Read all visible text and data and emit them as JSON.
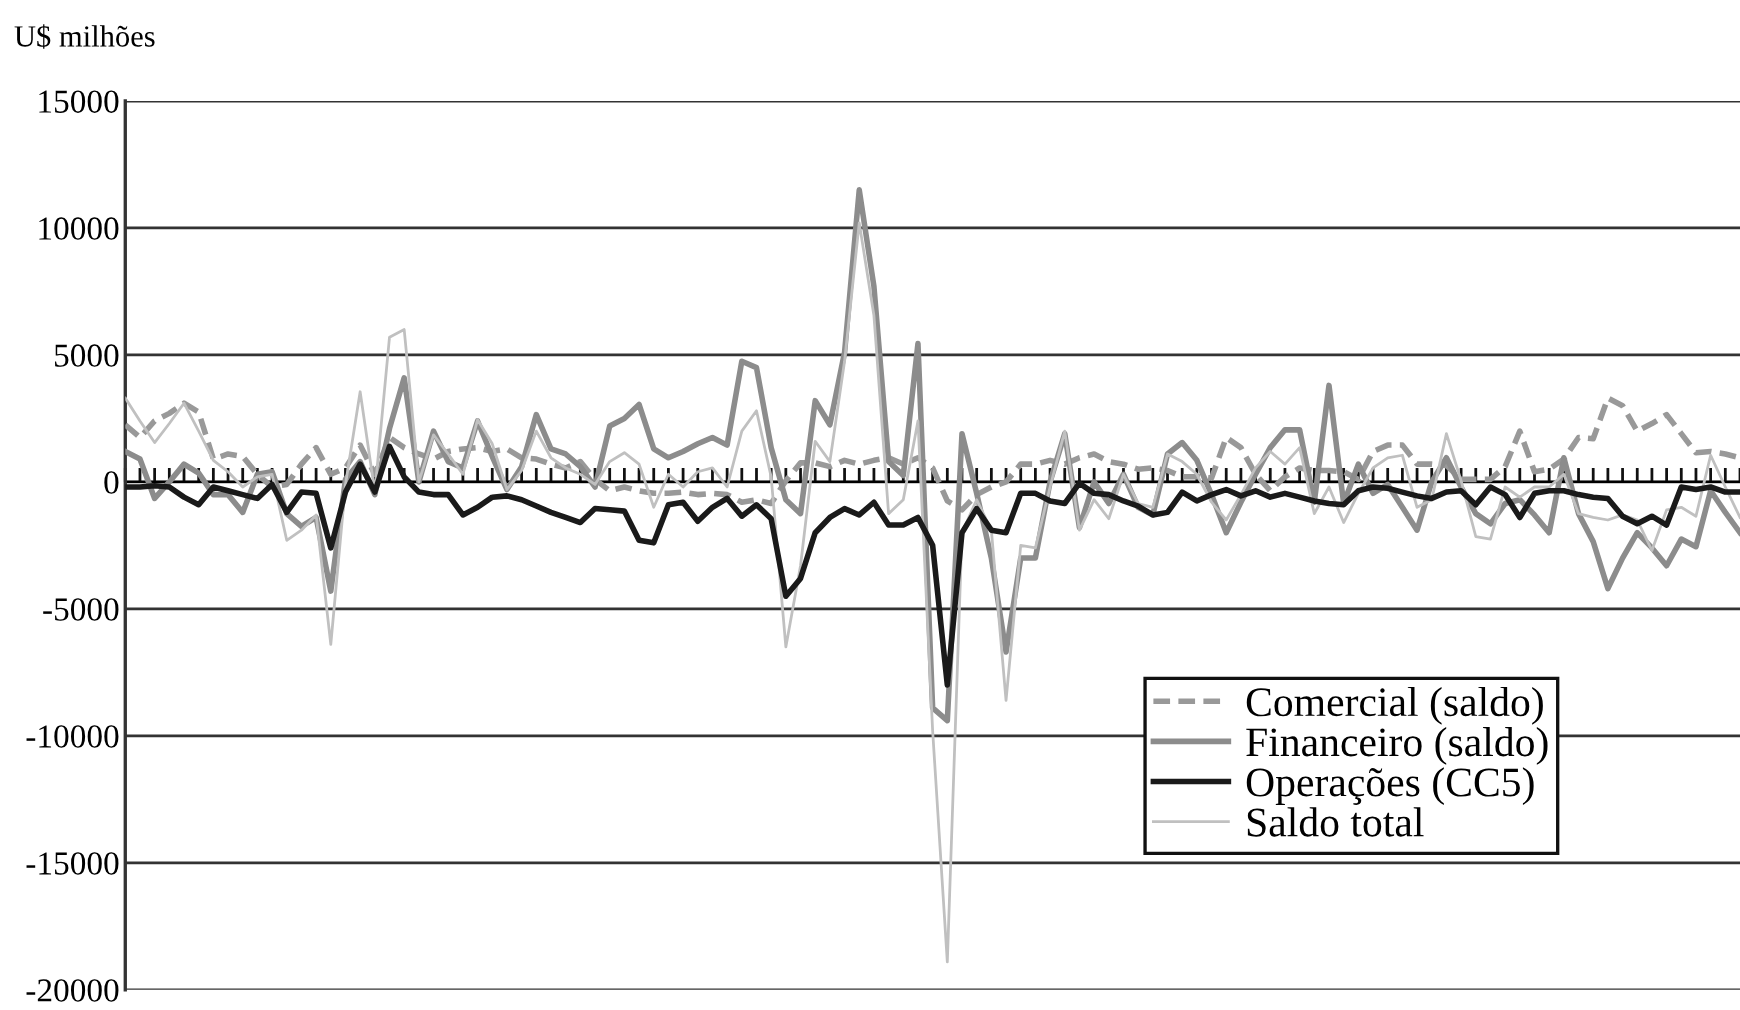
{
  "chart_data": {
    "type": "line",
    "ylabel": "U$ milhões",
    "categories": [
      null,
      null,
      null,
      null,
      null,
      null,
      null,
      null,
      null,
      null,
      null,
      null,
      null,
      null,
      null,
      null,
      null,
      null,
      null,
      null,
      null,
      null,
      null,
      null,
      null,
      null,
      null,
      null,
      null,
      null,
      null,
      null,
      null,
      null,
      null,
      null,
      null,
      null,
      null,
      null,
      null,
      null,
      null,
      null,
      null,
      null,
      null,
      null,
      null,
      null,
      null,
      null,
      null,
      null,
      null,
      null,
      null,
      null,
      null,
      null,
      null,
      null,
      null,
      null,
      null,
      null,
      null,
      null,
      null,
      null,
      null,
      null,
      null,
      null,
      null,
      null,
      null,
      null,
      null,
      null,
      null,
      null,
      null,
      null,
      null,
      null,
      null,
      null,
      null,
      null,
      null,
      null,
      null,
      null,
      null,
      null,
      null,
      null,
      null,
      null,
      null,
      null,
      null,
      null,
      null,
      null,
      null,
      null,
      null,
      null,
      null
    ],
    "series": [
      {
        "name": "Comercial (saldo)",
        "color": "#999999",
        "line_style": "dashed",
        "values": [
          2250,
          1750,
          2400,
          2700,
          3100,
          2750,
          900,
          1100,
          1000,
          300,
          -200,
          -100,
          700,
          1350,
          300,
          550,
          1450,
          300,
          1750,
          1350,
          1100,
          900,
          1200,
          1300,
          1350,
          1200,
          1300,
          950,
          900,
          700,
          550,
          800,
          100,
          -350,
          -200,
          -350,
          -450,
          -450,
          -400,
          -500,
          -450,
          -500,
          -800,
          -700,
          -850,
          50,
          750,
          750,
          600,
          850,
          700,
          850,
          950,
          700,
          950,
          550,
          -750,
          -1100,
          -500,
          -200,
          0,
          700,
          700,
          850,
          700,
          950,
          1100,
          800,
          700,
          500,
          550,
          450,
          200,
          200,
          150,
          1750,
          1350,
          300,
          -350,
          200,
          550,
          450,
          450,
          400,
          100,
          1200,
          1450,
          1450,
          700,
          700,
          650,
          100,
          100,
          100,
          600,
          2000,
          400,
          500,
          900,
          1750,
          1700,
          3300,
          3000,
          2000,
          2300,
          2650,
          1900,
          1150,
          1200,
          1100,
          950
        ]
      },
      {
        "name": "Financeiro (saldo)",
        "color": "#8c8c8c",
        "line_style": "solid",
        "values": [
          1200,
          900,
          -650,
          0,
          700,
          350,
          -500,
          -500,
          -1200,
          300,
          400,
          -1250,
          -1750,
          -1400,
          -4300,
          100,
          800,
          -500,
          2100,
          4100,
          0,
          2000,
          800,
          550,
          2400,
          1000,
          -300,
          600,
          2650,
          1300,
          1100,
          600,
          -200,
          2200,
          2500,
          3050,
          1300,
          950,
          1200,
          1500,
          1750,
          1450,
          4750,
          4500,
          1350,
          -700,
          -1250,
          3200,
          2250,
          5100,
          11500,
          7700,
          800,
          250,
          5450,
          -8900,
          -9400,
          1900,
          -450,
          -3000,
          -6700,
          -3000,
          -3000,
          0,
          1900,
          -1800,
          0,
          -850,
          300,
          -1000,
          -1300,
          1100,
          1550,
          850,
          -500,
          -2000,
          -800,
          300,
          1350,
          2050,
          2050,
          -800,
          3800,
          -850,
          700,
          -450,
          -100,
          -1000,
          -1900,
          0,
          950,
          -200,
          -1250,
          -1650,
          -850,
          -700,
          -1300,
          -2000,
          950,
          -1250,
          -2350,
          -4200,
          -3000,
          -2000,
          -2600,
          -3300,
          -2250,
          -2550,
          -350,
          -1200,
          -2000
        ]
      },
      {
        "name": "Operações (CC5)",
        "color": "#1a1a1a",
        "line_style": "solid",
        "values": [
          -200,
          -200,
          -150,
          -200,
          -600,
          -900,
          -200,
          -350,
          -500,
          -650,
          -100,
          -1200,
          -400,
          -450,
          -2600,
          -400,
          700,
          -400,
          1400,
          200,
          -400,
          -500,
          -500,
          -1300,
          -1000,
          -600,
          -550,
          -700,
          -950,
          -1200,
          -1400,
          -1600,
          -1050,
          -1100,
          -1150,
          -2300,
          -2400,
          -900,
          -800,
          -1550,
          -1000,
          -650,
          -1350,
          -900,
          -1450,
          -4500,
          -3800,
          -2000,
          -1400,
          -1050,
          -1300,
          -800,
          -1700,
          -1700,
          -1400,
          -2500,
          -8000,
          -2000,
          -1050,
          -1900,
          -2000,
          -450,
          -450,
          -750,
          -850,
          -50,
          -450,
          -500,
          -750,
          -950,
          -1300,
          -1200,
          -400,
          -750,
          -500,
          -300,
          -550,
          -350,
          -600,
          -450,
          -600,
          -750,
          -850,
          -900,
          -350,
          -200,
          -250,
          -400,
          -550,
          -650,
          -400,
          -350,
          -900,
          -200,
          -500,
          -1400,
          -450,
          -350,
          -350,
          -500,
          -600,
          -650,
          -1350,
          -1650,
          -1350,
          -1700,
          -200,
          -300,
          -200,
          -400,
          -400
        ]
      },
      {
        "name": "Saldo total",
        "color": "#c0c0c0",
        "line_style": "solid",
        "values": [
          3300,
          2400,
          1550,
          2300,
          3100,
          2000,
          850,
          400,
          -200,
          200,
          300,
          -2300,
          -1900,
          -1300,
          -6400,
          -100,
          3550,
          -400,
          5700,
          6000,
          0,
          1850,
          1100,
          300,
          2450,
          1500,
          -300,
          450,
          2000,
          950,
          550,
          300,
          -100,
          800,
          1150,
          700,
          -1000,
          300,
          -200,
          400,
          550,
          -200,
          2000,
          2800,
          200,
          -6500,
          -3300,
          1600,
          800,
          4750,
          10200,
          6550,
          -1250,
          -700,
          2400,
          -9800,
          -18900,
          -2000,
          -700,
          -1900,
          -8600,
          -2500,
          -2600,
          -200,
          2000,
          -1900,
          -700,
          -1450,
          300,
          -850,
          -1000,
          1100,
          800,
          300,
          -800,
          -1500,
          -500,
          550,
          1200,
          700,
          1350,
          -1250,
          -200,
          -1600,
          -450,
          550,
          950,
          1050,
          -1000,
          -700,
          1900,
          50,
          -2150,
          -2250,
          -200,
          -600,
          -200,
          -200,
          300,
          -1250,
          -1400,
          -1500,
          -1300,
          -1500,
          -2700,
          -1100,
          -1000,
          -1350,
          1050,
          -200,
          -1400
        ]
      }
    ],
    "ylim": [
      -20000,
      15000
    ],
    "yticks": [
      -20000,
      -15000,
      -10000,
      -5000,
      0,
      5000,
      10000,
      15000
    ],
    "grid": "y",
    "legend": "bottom right",
    "tick_labels": "y"
  }
}
